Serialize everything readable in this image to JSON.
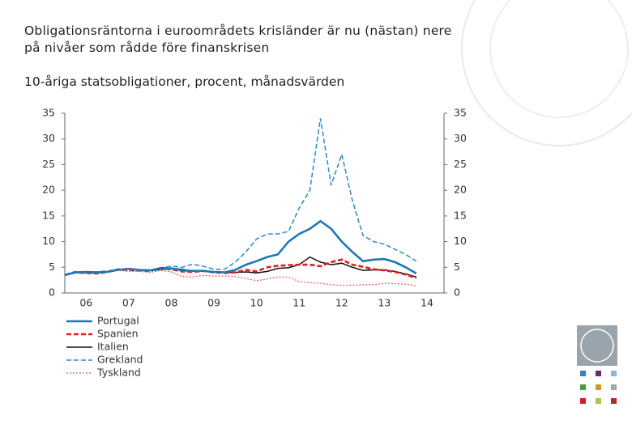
{
  "chart_data": {
    "type": "line",
    "title": "Obligationsräntorna i euroområdets krisländer är nu (nästan) nere på nivåer som rådde före finanskrisen",
    "subtitle": "10-åriga statsobligationer, procent, månadsvärden",
    "x": [
      2006,
      2006.25,
      2006.5,
      2006.75,
      2007,
      2007.25,
      2007.5,
      2007.75,
      2008,
      2008.25,
      2008.5,
      2008.75,
      2009,
      2009.25,
      2009.5,
      2009.75,
      2010,
      2010.25,
      2010.5,
      2010.75,
      2011,
      2011.25,
      2011.5,
      2011.75,
      2012,
      2012.25,
      2012.5,
      2012.75,
      2013,
      2013.25,
      2013.5,
      2013.75,
      2014,
      2014.25
    ],
    "xlim": [
      2006,
      2014.9
    ],
    "xticks": [
      {
        "value": 2006.5,
        "label": "06"
      },
      {
        "value": 2007.5,
        "label": "07"
      },
      {
        "value": 2008.5,
        "label": "08"
      },
      {
        "value": 2009.5,
        "label": "09"
      },
      {
        "value": 2010.5,
        "label": "10"
      },
      {
        "value": 2011.5,
        "label": "11"
      },
      {
        "value": 2012.5,
        "label": "12"
      },
      {
        "value": 2013.5,
        "label": "13"
      },
      {
        "value": 2014.5,
        "label": "14"
      }
    ],
    "ylim": [
      0,
      35
    ],
    "yticks": [
      0,
      5,
      10,
      15,
      20,
      25,
      30,
      35
    ],
    "grid": false,
    "series": [
      {
        "name": "Portugal",
        "color": "#1f78b4",
        "style": "solid",
        "width": 2.6,
        "values": [
          3.5,
          4.0,
          4.1,
          4.0,
          4.1,
          4.5,
          4.7,
          4.5,
          4.4,
          4.6,
          4.8,
          4.4,
          4.3,
          4.3,
          4.1,
          4.0,
          4.5,
          5.5,
          6.2,
          7.0,
          7.5,
          10,
          11.5,
          12.5,
          14,
          12.5,
          10,
          8,
          6.2,
          6.5,
          6.6,
          6.0,
          5.0,
          3.8
        ]
      },
      {
        "name": "Spanien",
        "color": "#e41a1c",
        "style": "dashed",
        "width": 2.6,
        "values": [
          3.5,
          4.0,
          3.9,
          3.8,
          4.1,
          4.6,
          4.5,
          4.4,
          4.3,
          4.8,
          4.6,
          4.2,
          4.1,
          4.3,
          4.0,
          3.9,
          4.0,
          4.5,
          4.2,
          5.0,
          5.3,
          5.4,
          5.5,
          5.5,
          5.2,
          6.0,
          6.5,
          5.5,
          5.1,
          4.6,
          4.4,
          4.1,
          3.6,
          2.9
        ]
      },
      {
        "name": "Italien",
        "color": "#111111",
        "style": "solid",
        "width": 1.5,
        "values": [
          3.5,
          4.0,
          4.0,
          3.9,
          4.1,
          4.6,
          4.6,
          4.5,
          4.4,
          4.9,
          4.8,
          4.6,
          4.3,
          4.3,
          4.1,
          4.0,
          4.0,
          4.1,
          3.9,
          4.2,
          4.8,
          4.9,
          5.5,
          7.0,
          6.0,
          5.5,
          5.8,
          5.0,
          4.4,
          4.5,
          4.5,
          4.2,
          3.7,
          3.1
        ]
      },
      {
        "name": "Grekland",
        "color": "#2b8cc4",
        "style": "dashed",
        "width": 1.5,
        "values": [
          3.6,
          4.2,
          4.1,
          4.1,
          4.3,
          4.6,
          4.6,
          4.5,
          4.5,
          4.9,
          5.2,
          5.0,
          5.6,
          5.2,
          4.6,
          4.6,
          6.0,
          8.0,
          10.5,
          11.5,
          11.5,
          12,
          16.5,
          20,
          34,
          21,
          27,
          18,
          11.2,
          10,
          9.5,
          8.5,
          7.5,
          6.2
        ]
      },
      {
        "name": "Tyskland",
        "color": "#e8575a",
        "style": "dotted",
        "width": 1.2,
        "values": [
          3.4,
          3.9,
          3.8,
          3.8,
          4.0,
          4.4,
          4.2,
          4.2,
          4.0,
          4.4,
          4.1,
          3.2,
          3.1,
          3.4,
          3.3,
          3.3,
          3.2,
          2.8,
          2.4,
          2.7,
          3.1,
          3.1,
          2.2,
          2.0,
          1.9,
          1.6,
          1.5,
          1.5,
          1.6,
          1.6,
          1.9,
          1.8,
          1.7,
          1.4
        ]
      }
    ]
  }
}
